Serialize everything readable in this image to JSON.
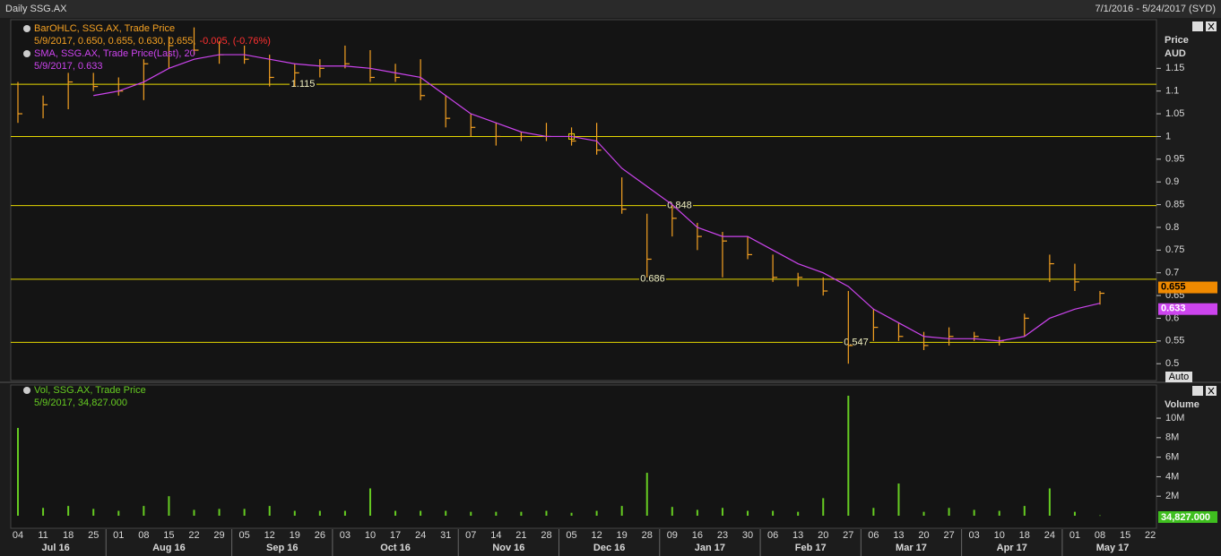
{
  "title": "Daily SSG.AX",
  "date_range": "7/1/2016 - 5/24/2017 (SYD)",
  "x_axis": {
    "months": [
      {
        "name": "Jul 16",
        "days": [
          "04",
          "11",
          "18",
          "25"
        ]
      },
      {
        "name": "Aug 16",
        "days": [
          "01",
          "08",
          "15",
          "22",
          "29"
        ]
      },
      {
        "name": "Sep 16",
        "days": [
          "05",
          "12",
          "19",
          "26"
        ]
      },
      {
        "name": "Oct 16",
        "days": [
          "03",
          "10",
          "17",
          "24",
          "31"
        ]
      },
      {
        "name": "Nov 16",
        "days": [
          "07",
          "14",
          "21",
          "28"
        ]
      },
      {
        "name": "Dec 16",
        "days": [
          "05",
          "12",
          "19",
          "28"
        ]
      },
      {
        "name": "Jan 17",
        "days": [
          "09",
          "16",
          "23",
          "30"
        ]
      },
      {
        "name": "Feb 17",
        "days": [
          "06",
          "13",
          "20",
          "27"
        ]
      },
      {
        "name": "Mar 17",
        "days": [
          "06",
          "13",
          "20",
          "27"
        ]
      },
      {
        "name": "Apr 17",
        "days": [
          "03",
          "10",
          "18",
          "24"
        ]
      },
      {
        "name": "May 17",
        "days": [
          "01",
          "08",
          "15",
          "22"
        ]
      }
    ]
  },
  "chart_data": [
    {
      "type": "ohlc",
      "y_label": "Price",
      "y_unit": "AUD",
      "auto_button": "Auto",
      "ylim": [
        0.463,
        1.257
      ],
      "yticks": [
        0.5,
        0.55,
        0.6,
        0.65,
        0.7,
        0.75,
        0.8,
        0.85,
        0.9,
        0.95,
        1,
        1.05,
        1.1,
        1.15
      ],
      "hlines": [
        1.115,
        1,
        0.848,
        0.686,
        0.547
      ],
      "hline_labels": [
        "1.115",
        null,
        "0.848",
        "0.686",
        "0.547"
      ],
      "hline_color": "#e6d800",
      "series": [
        {
          "name": "BarOHLC, SSG.AX, Trade Price",
          "color": "#f5a122",
          "detail": "5/9/2017, 0.650, 0.655, 0.630, 0.655,",
          "change": "-0.005, (-0.76%)",
          "change_color": "#ff3030",
          "high": [
            1.12,
            1.09,
            1.14,
            1.14,
            1.13,
            1.17,
            1.22,
            1.24,
            1.21,
            1.2,
            1.18,
            1.16,
            1.17,
            1.2,
            1.19,
            1.16,
            1.17,
            1.09,
            1.05,
            1.03,
            1.01,
            1.03,
            1.02,
            1.03,
            0.91,
            0.83,
            0.85,
            0.81,
            0.79,
            0.78,
            0.74,
            0.7,
            0.69,
            0.66,
            0.62,
            0.59,
            0.57,
            0.58,
            0.57,
            0.56,
            0.61,
            0.74,
            0.72,
            0.66,
            null,
            null
          ],
          "low": [
            1.03,
            1.04,
            1.06,
            1.1,
            1.09,
            1.08,
            1.15,
            1.18,
            1.16,
            1.16,
            1.11,
            1.11,
            1.13,
            1.15,
            1.12,
            1.12,
            1.08,
            1.02,
            1,
            0.98,
            0.99,
            0.99,
            0.98,
            0.96,
            0.83,
            0.69,
            0.78,
            0.75,
            0.69,
            0.73,
            0.68,
            0.67,
            0.65,
            0.5,
            0.55,
            0.55,
            0.53,
            0.54,
            0.55,
            0.54,
            0.56,
            0.68,
            0.66,
            0.63,
            null,
            null
          ],
          "values": [
            1.05,
            1.07,
            1.12,
            1.11,
            1.1,
            1.16,
            1.2,
            1.19,
            1.18,
            1.17,
            1.13,
            1.14,
            1.15,
            1.16,
            1.13,
            1.13,
            1.09,
            1.04,
            1.02,
            1,
            1,
            1,
            0.99,
            0.97,
            0.84,
            0.73,
            0.82,
            0.78,
            0.77,
            0.74,
            0.69,
            0.69,
            0.66,
            0.54,
            0.58,
            0.56,
            0.54,
            0.56,
            0.56,
            0.55,
            0.6,
            0.72,
            0.68,
            0.655,
            null,
            null
          ]
        },
        {
          "name": "SMA, SSG.AX, Trade Price(Last), 20",
          "color": "#cc44ee",
          "detail": "5/9/2017, 0.633",
          "values": [
            null,
            null,
            null,
            1.09,
            1.1,
            1.12,
            1.15,
            1.17,
            1.18,
            1.18,
            1.17,
            1.16,
            1.155,
            1.155,
            1.15,
            1.14,
            1.13,
            1.09,
            1.05,
            1.03,
            1.01,
            1,
            1,
            0.99,
            0.93,
            0.89,
            0.85,
            0.8,
            0.78,
            0.78,
            0.75,
            0.72,
            0.7,
            0.67,
            0.62,
            0.59,
            0.56,
            0.555,
            0.555,
            0.55,
            0.56,
            0.6,
            0.62,
            0.633,
            null,
            null
          ]
        }
      ]
    },
    {
      "type": "bar",
      "y_label": "Volume",
      "last_label": "34,827.000",
      "ylim": [
        0,
        13400000
      ],
      "yticks": [
        {
          "value": 2000000,
          "label": "2M"
        },
        {
          "value": 4000000,
          "label": "4M"
        },
        {
          "value": 6000000,
          "label": "6M"
        },
        {
          "value": 8000000,
          "label": "8M"
        },
        {
          "value": 10000000,
          "label": "10M"
        }
      ],
      "series": [
        {
          "name": "Vol, SSG.AX, Trade Price",
          "color": "#66cc22",
          "detail": "5/9/2017, 34,827.000",
          "values": [
            9000000,
            800000,
            1000000,
            700000,
            500000,
            1000000,
            2000000,
            600000,
            700000,
            700000,
            1000000,
            500000,
            500000,
            500000,
            2800000,
            500000,
            500000,
            500000,
            400000,
            400000,
            400000,
            500000,
            300000,
            500000,
            1000000,
            4400000,
            900000,
            600000,
            800000,
            500000,
            500000,
            400000,
            1800000,
            12300000,
            800000,
            3300000,
            400000,
            800000,
            600000,
            500000,
            1000000,
            2800000,
            400000,
            34827,
            null,
            null
          ]
        }
      ]
    }
  ]
}
